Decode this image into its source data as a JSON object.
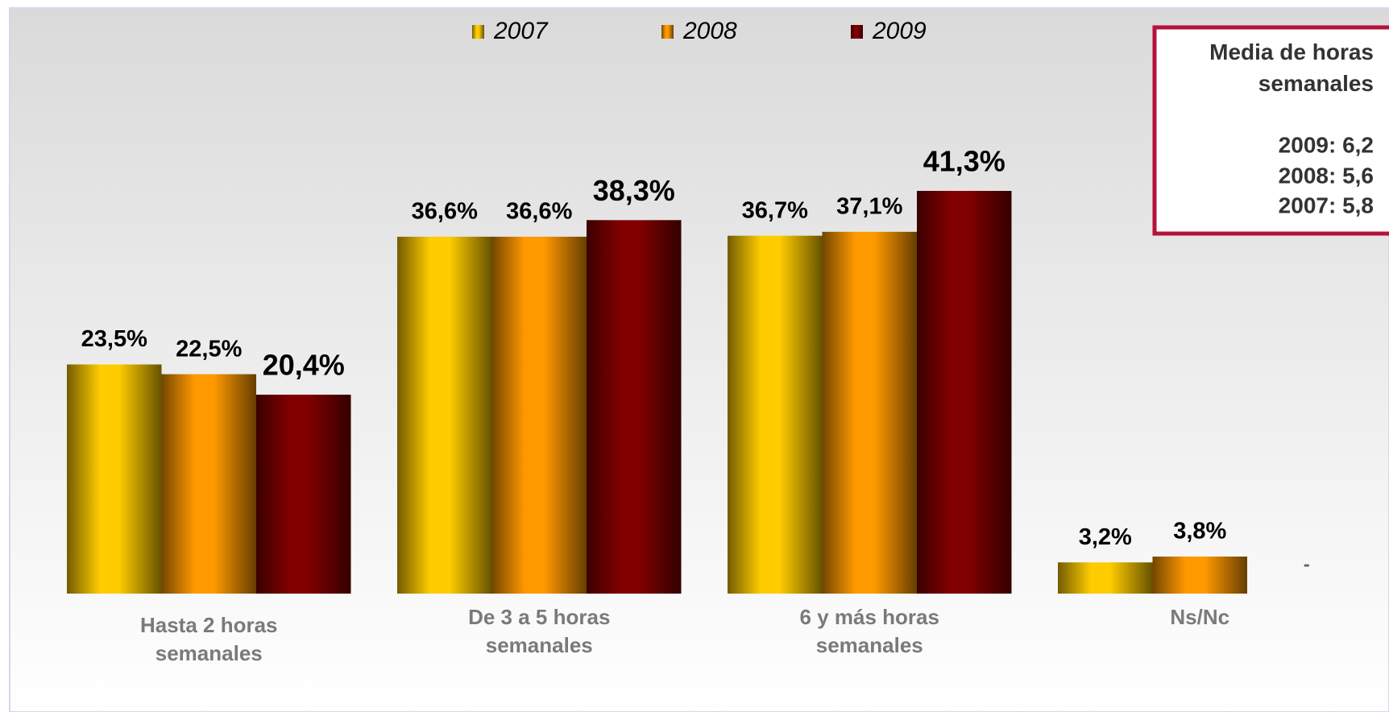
{
  "chart_data": {
    "type": "bar",
    "categories": [
      "Hasta 2 horas semanales",
      "De 3 a 5 horas semanales",
      "6 y más horas semanales",
      "Ns/Nc"
    ],
    "series": [
      {
        "name": "2007",
        "color": "#ffcc00",
        "values": [
          23.5,
          36.6,
          36.7,
          3.2
        ],
        "value_labels": [
          "23,5%",
          "36,6%",
          "36,7%",
          "3,2%"
        ]
      },
      {
        "name": "2008",
        "color": "#ff9900",
        "values": [
          22.5,
          36.6,
          37.1,
          3.8
        ],
        "value_labels": [
          "22,5%",
          "36,6%",
          "37,1%",
          "3,8%"
        ]
      },
      {
        "name": "2009",
        "color": "#800000",
        "values": [
          20.4,
          38.3,
          41.3,
          null
        ],
        "value_labels": [
          "20,4%",
          "38,3%",
          "41,3%",
          "-"
        ]
      }
    ],
    "legend": "top",
    "annotations": [
      "Media de horas semanales",
      "2009: 6,2",
      "2008: 5,6",
      "2007: 5,8"
    ]
  }
}
